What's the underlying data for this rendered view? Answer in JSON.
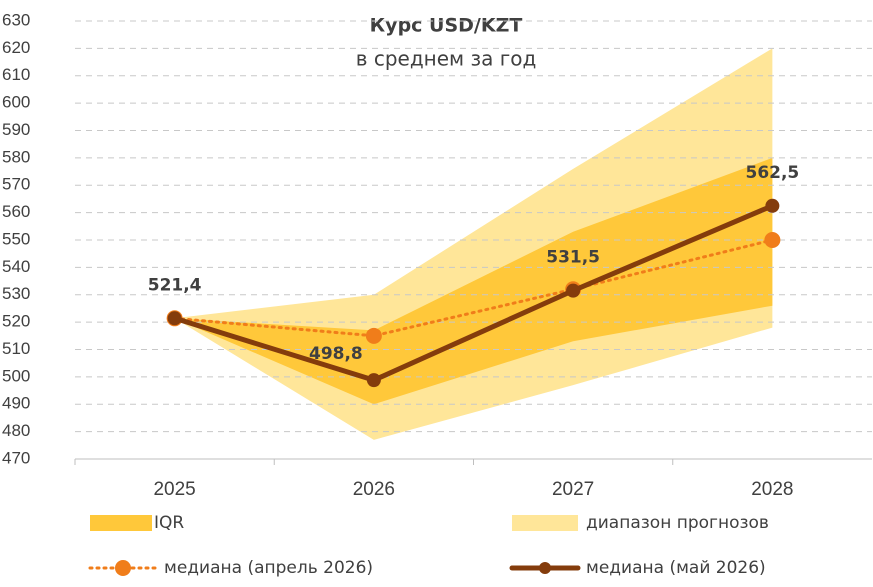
{
  "chart_data": {
    "type": "line",
    "title": "Курс USD/KZT",
    "subtitle": "в среднем за год",
    "categories": [
      "2025",
      "2026",
      "2027",
      "2028"
    ],
    "bands": [
      {
        "name": "IQR",
        "color": "#ffc83a",
        "lower": [
          521.4,
          490,
          513,
          526
        ],
        "upper": [
          521.4,
          517,
          553,
          580
        ]
      },
      {
        "name": "диапазон прогнозов",
        "color": "#ffe699",
        "lower": [
          521.4,
          477,
          497,
          518
        ],
        "upper": [
          521.4,
          530,
          576,
          620
        ]
      }
    ],
    "series": [
      {
        "name": "медиана (апрель 2026)",
        "color": "#f07d1a",
        "style": "dotted",
        "values": [
          521.4,
          515,
          532,
          550
        ]
      },
      {
        "name": "медиана (май 2026)",
        "color": "#843c0c",
        "style": "solid",
        "values": [
          521.4,
          498.8,
          531.5,
          562.5
        ],
        "value_labels": [
          "521,4",
          "498,8",
          "531,5",
          "562,5"
        ]
      }
    ],
    "ylim": [
      470,
      630
    ],
    "yticks": [
      470,
      480,
      490,
      500,
      510,
      520,
      530,
      540,
      550,
      560,
      570,
      580,
      590,
      600,
      610,
      620,
      630
    ],
    "grid": true
  }
}
